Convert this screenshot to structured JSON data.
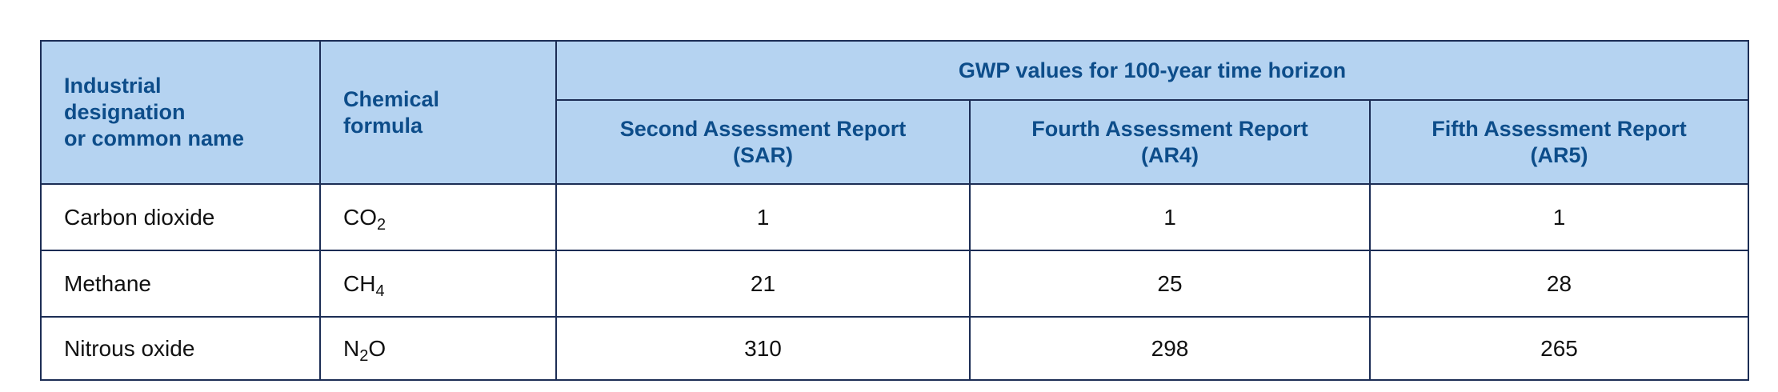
{
  "table": {
    "header": {
      "name": [
        "Industrial",
        "designation",
        "or common name"
      ],
      "formula": [
        "Chemical",
        "formula"
      ],
      "group": "GWP values for 100-year time horizon",
      "reports": [
        [
          "Second Assessment Report",
          "(SAR)"
        ],
        [
          "Fourth Assessment Report",
          "(AR4)"
        ],
        [
          "Fifth Assessment Report",
          "(AR5)"
        ]
      ]
    },
    "rows": [
      {
        "name": "Carbon dioxide",
        "formula": [
          {
            "text": "CO"
          },
          {
            "sub": "2"
          }
        ],
        "values": [
          1,
          1,
          1
        ]
      },
      {
        "name": "Methane",
        "formula": [
          {
            "text": "CH"
          },
          {
            "sub": "4"
          }
        ],
        "values": [
          21,
          25,
          28
        ]
      },
      {
        "name": "Nitrous oxide",
        "formula": [
          {
            "text": "N"
          },
          {
            "sub": "2"
          },
          {
            "text": "O"
          }
        ],
        "values": [
          310,
          298,
          265
        ]
      }
    ]
  }
}
